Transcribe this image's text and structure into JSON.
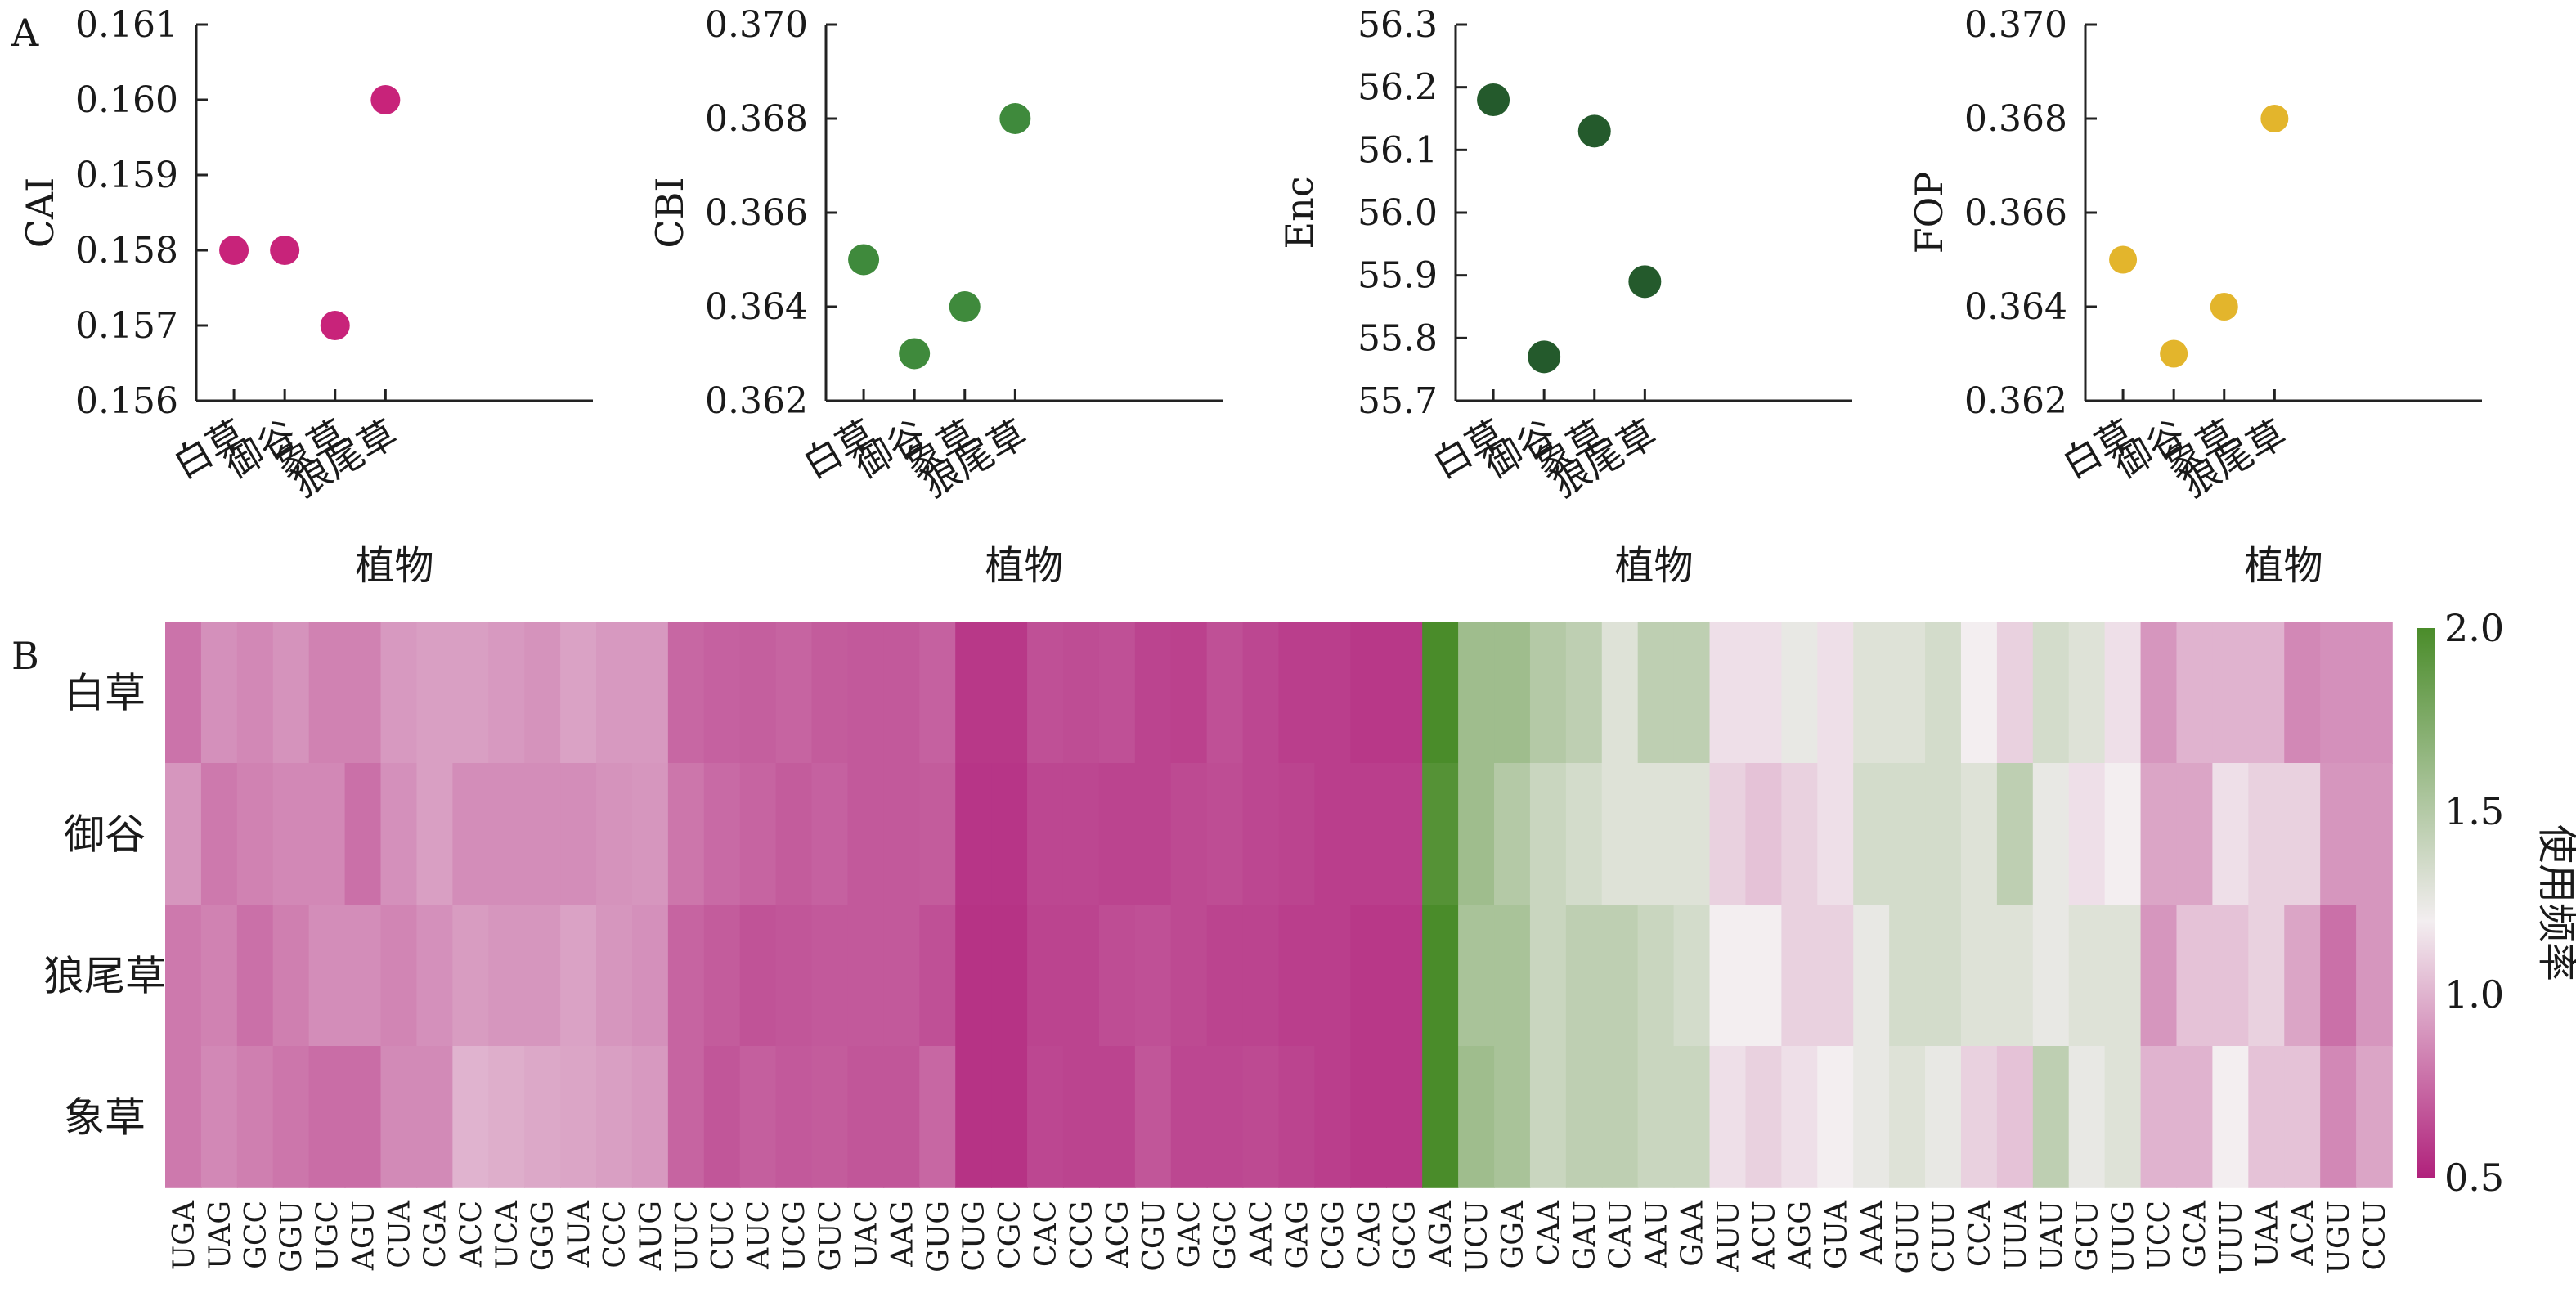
{
  "panel_labels": {
    "a": "A",
    "b": "B"
  },
  "colors": {
    "CAI": "#c8237a",
    "CBI": "#3f8a3c",
    "Enc": "#245a2c",
    "FOP": "#e3b52c",
    "heat_low": "#b0217b",
    "heat_mid": "#f3eef0",
    "heat_high": "#4a8c2a"
  },
  "chart_data": [
    {
      "type": "scatter",
      "panel": "A",
      "categories": [
        "白草",
        "御谷",
        "象草",
        "狼尾草"
      ],
      "values": [
        0.158,
        0.158,
        0.157,
        0.16
      ],
      "xlabel": "植物",
      "ylabel": "CAI",
      "ylim": [
        0.156,
        0.161
      ],
      "yticks": [
        "0.156",
        "0.157",
        "0.158",
        "0.159",
        "0.160",
        "0.161"
      ]
    },
    {
      "type": "scatter",
      "panel": "A",
      "categories": [
        "白草",
        "御谷",
        "象草",
        "狼尾草"
      ],
      "values": [
        0.365,
        0.363,
        0.364,
        0.368
      ],
      "xlabel": "植物",
      "ylabel": "CBI",
      "ylim": [
        0.362,
        0.37
      ],
      "yticks": [
        "0.362",
        "0.364",
        "0.366",
        "0.368",
        "0.370"
      ]
    },
    {
      "type": "scatter",
      "panel": "A",
      "categories": [
        "白草",
        "御谷",
        "象草",
        "狼尾草"
      ],
      "values": [
        56.18,
        55.77,
        56.13,
        55.89
      ],
      "xlabel": "植物",
      "ylabel": "Enc",
      "ylim": [
        55.7,
        56.3
      ],
      "yticks": [
        "55.7",
        "55.8",
        "55.9",
        "56.0",
        "56.1",
        "56.2",
        "56.3"
      ]
    },
    {
      "type": "scatter",
      "panel": "A",
      "categories": [
        "白草",
        "御谷",
        "象草",
        "狼尾草"
      ],
      "values": [
        0.365,
        0.363,
        0.364,
        0.368
      ],
      "xlabel": "植物",
      "ylabel": "FOP",
      "ylim": [
        0.362,
        0.37
      ],
      "yticks": [
        "0.362",
        "0.364",
        "0.366",
        "0.368",
        "0.370"
      ]
    },
    {
      "type": "heatmap",
      "panel": "B",
      "rows": [
        "白草",
        "御谷",
        "狼尾草",
        "象草"
      ],
      "columns": [
        "UGA",
        "UAG",
        "GCC",
        "GGU",
        "UGC",
        "AGU",
        "CUA",
        "CGA",
        "ACC",
        "UCA",
        "GGG",
        "AUA",
        "CCC",
        "AUG",
        "UUC",
        "CUC",
        "AUC",
        "UCG",
        "GUC",
        "UAC",
        "AAG",
        "GUG",
        "CUG",
        "CGC",
        "CAC",
        "CCG",
        "ACG",
        "CGU",
        "GAC",
        "GGC",
        "AAC",
        "GAG",
        "CGG",
        "CAG",
        "GCG",
        "AGA",
        "UCU",
        "GGA",
        "CAA",
        "GAU",
        "CAU",
        "AAU",
        "GAA",
        "AUU",
        "ACU",
        "AGG",
        "GUA",
        "AAA",
        "GUU",
        "CUU",
        "CCA",
        "UUA",
        "UAU",
        "GCU",
        "UUG",
        "UCC",
        "GCA",
        "UUU",
        "UAA",
        "ACA",
        "UGU",
        "CCU"
      ],
      "values": [
        [
          0.78,
          0.88,
          0.85,
          0.89,
          0.83,
          0.83,
          0.91,
          0.93,
          0.93,
          0.91,
          0.89,
          0.94,
          0.91,
          0.91,
          0.74,
          0.72,
          0.71,
          0.73,
          0.7,
          0.69,
          0.69,
          0.72,
          0.58,
          0.58,
          0.66,
          0.65,
          0.66,
          0.62,
          0.61,
          0.66,
          0.63,
          0.6,
          0.6,
          0.58,
          0.58,
          2.0,
          1.6,
          1.6,
          1.5,
          1.45,
          1.3,
          1.45,
          1.45,
          1.15,
          1.15,
          1.25,
          1.15,
          1.3,
          1.3,
          1.35,
          1.2,
          1.1,
          1.35,
          1.3,
          1.15,
          0.9,
          1.0,
          1.0,
          1.0,
          0.85,
          0.88,
          0.88
        ],
        [
          0.9,
          0.8,
          0.83,
          0.85,
          0.85,
          0.77,
          0.88,
          0.93,
          0.87,
          0.87,
          0.87,
          0.87,
          0.89,
          0.9,
          0.79,
          0.75,
          0.73,
          0.7,
          0.72,
          0.69,
          0.69,
          0.7,
          0.57,
          0.57,
          0.63,
          0.63,
          0.62,
          0.62,
          0.64,
          0.65,
          0.63,
          0.62,
          0.6,
          0.6,
          0.6,
          1.95,
          1.6,
          1.5,
          1.4,
          1.35,
          1.3,
          1.3,
          1.3,
          1.1,
          1.05,
          1.1,
          1.15,
          1.35,
          1.35,
          1.35,
          1.3,
          1.45,
          1.25,
          1.15,
          1.2,
          0.95,
          0.95,
          1.15,
          1.1,
          1.1,
          0.9,
          0.9
        ],
        [
          0.8,
          0.83,
          0.77,
          0.82,
          0.87,
          0.87,
          0.84,
          0.88,
          0.92,
          0.9,
          0.9,
          0.94,
          0.9,
          0.88,
          0.73,
          0.7,
          0.67,
          0.68,
          0.69,
          0.69,
          0.69,
          0.66,
          0.56,
          0.56,
          0.62,
          0.62,
          0.65,
          0.66,
          0.64,
          0.62,
          0.62,
          0.6,
          0.6,
          0.58,
          0.58,
          2.0,
          1.55,
          1.55,
          1.4,
          1.45,
          1.45,
          1.4,
          1.35,
          1.2,
          1.2,
          1.1,
          1.1,
          1.25,
          1.35,
          1.35,
          1.3,
          1.3,
          1.25,
          1.3,
          1.3,
          0.9,
          1.05,
          1.05,
          1.1,
          0.95,
          0.77,
          0.9
        ],
        [
          0.8,
          0.85,
          0.82,
          0.79,
          0.76,
          0.76,
          0.86,
          0.86,
          1.0,
          0.98,
          0.96,
          0.95,
          0.93,
          0.91,
          0.73,
          0.68,
          0.71,
          0.69,
          0.7,
          0.68,
          0.68,
          0.74,
          0.56,
          0.56,
          0.63,
          0.62,
          0.62,
          0.68,
          0.63,
          0.63,
          0.64,
          0.62,
          0.6,
          0.58,
          0.58,
          2.0,
          1.6,
          1.55,
          1.4,
          1.45,
          1.45,
          1.4,
          1.4,
          1.15,
          1.1,
          1.15,
          1.2,
          1.25,
          1.3,
          1.25,
          1.1,
          1.05,
          1.45,
          1.25,
          1.3,
          1.0,
          1.0,
          1.2,
          1.05,
          1.05,
          0.85,
          0.95
        ]
      ],
      "colorbar": {
        "label": "使用频率",
        "ticks": [
          "0.5",
          "1.0",
          "1.5",
          "2.0"
        ],
        "range": [
          0.5,
          2.0
        ]
      }
    }
  ]
}
